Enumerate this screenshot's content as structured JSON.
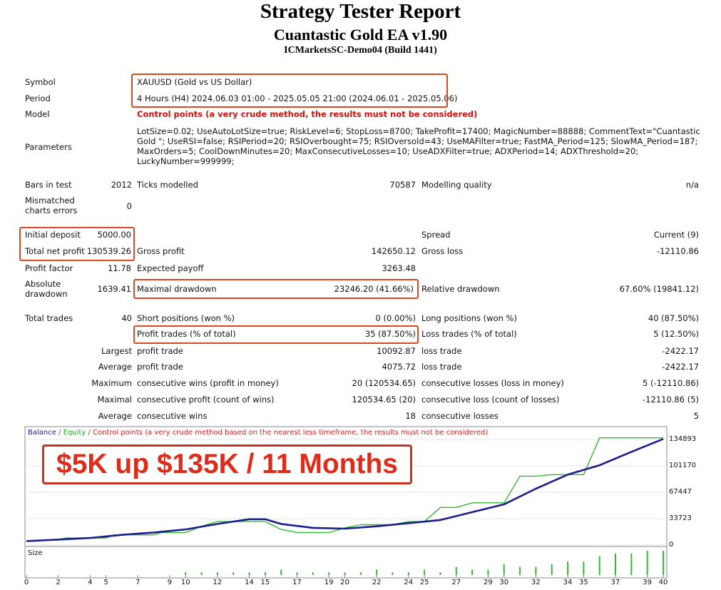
{
  "header": {
    "title": "Strategy Tester Report",
    "subtitle": "Cuantastic Gold EA v1.90",
    "server": "ICMarketsSC-Demo04 (Build 1441)"
  },
  "info": {
    "symbol_label": "Symbol",
    "symbol_value": "XAUUSD (Gold vs US Dollar)",
    "period_label": "Period",
    "period_value": "4 Hours (H4) 2024.06.03 01:00 - 2025.05.05 21:00 (2024.06.01 - 2025.05.06)",
    "model_label": "Model",
    "model_value": "Control points (a very crude method, the results must not be considered)",
    "parameters_label": "Parameters",
    "parameters_value": "LotSize=0.02; UseAutoLotSize=true; RiskLevel=6; StopLoss=8700; TakeProfit=17400; MagicNumber=88888; CommentText=\"Cuantastic Gold \"; UseRSI=false; RSIPeriod=20; RSIOverbought=75; RSIOversold=43; UseMAFilter=true; FastMA_Period=125; SlowMA_Period=187; MaxOrders=5; CoolDownMinutes=20; MaxConsecutiveLosses=10; UseADXFilter=true; ADXPeriod=14; ADXThreshold=20; LuckyNumber=999999;"
  },
  "stats": {
    "bars_label": "Bars in test",
    "bars_value": "2012",
    "ticks_label": "Ticks modelled",
    "ticks_value": "70587",
    "quality_label": "Modelling quality",
    "quality_value": "n/a",
    "mismatch_label": "Mismatched charts errors",
    "mismatch_value": "0",
    "deposit_label": "Initial deposit",
    "deposit_value": "5000.00",
    "spread_label": "Spread",
    "spread_value": "Current (9)",
    "netprofit_label": "Total net profit",
    "netprofit_value": "130539.26",
    "grossprofit_label": "Gross profit",
    "grossprofit_value": "142650.12",
    "grossloss_label": "Gross loss",
    "grossloss_value": "-12110.86",
    "pf_label": "Profit factor",
    "pf_value": "11.78",
    "payoff_label": "Expected payoff",
    "payoff_value": "3263.48",
    "absdd_label": "Absolute drawdown",
    "absdd_value": "1639.41",
    "maxdd_label": "Maximal drawdown",
    "maxdd_value": "23246.20 (41.66%)",
    "reldd_label": "Relative drawdown",
    "reldd_value": "67.60% (19841.12)",
    "trades_label": "Total trades",
    "trades_value": "40",
    "short_label": "Short positions (won %)",
    "short_value": "0 (0.00%)",
    "long_label": "Long positions (won %)",
    "long_value": "40 (87.50%)",
    "profitt_label": "Profit trades (% of total)",
    "profitt_value": "35 (87.50%)",
    "losst_label": "Loss trades (% of total)",
    "losst_value": "5 (12.50%)",
    "largest_label": "Largest",
    "largest_pt_label": "profit trade",
    "largest_pt_value": "10092.87",
    "largest_lt_label": "loss trade",
    "largest_lt_value": "-2422.17",
    "average_label": "Average",
    "average_pt_label": "profit trade",
    "average_pt_value": "4075.72",
    "average_lt_label": "loss trade",
    "average_lt_value": "-2422.17",
    "maximum_label": "Maximum",
    "max_cw_label": "consecutive wins (profit in money)",
    "max_cw_value": "20 (120534.65)",
    "max_cl_label": "consecutive losses (loss in money)",
    "max_cl_value": "5 (-12110.86)",
    "maximal_label": "Maximal",
    "mxl_cp_label": "consecutive profit (count of wins)",
    "mxl_cp_value": "120534.65 (20)",
    "mxl_cl_label": "consecutive loss (count of losses)",
    "mxl_cl_value": "-12110.86 (5)",
    "avg2_label": "Average",
    "avg_cw_label": "consecutive wins",
    "avg_cw_value": "18",
    "avg_cl_label": "consecutive losses",
    "avg_cl_value": "5"
  },
  "chart_data": {
    "type": "line",
    "legend_balance": "Balance",
    "legend_sep": " / ",
    "legend_equity": "Equity",
    "legend_control": " / Control points (a very crude method based on the nearest less timeframe, the results must not be considered)",
    "size_label": "Size",
    "promo": "$5K up $135K / 11 Months",
    "colors": {
      "balance": "#1c1c8c",
      "equity": "#33bb33",
      "control": "#cc2222",
      "size": "#33bb33"
    },
    "y_ticks": [
      "134893",
      "101170",
      "67447",
      "33723",
      "0"
    ],
    "y_tick_values": [
      134893,
      101170,
      67447,
      33723,
      0
    ],
    "ylim": [
      0,
      134893
    ],
    "x_ticks": [
      "0",
      "2",
      "4",
      "5",
      "7",
      "9",
      "10",
      "12",
      "14",
      "15",
      "17",
      "19",
      "20",
      "22",
      "24",
      "25",
      "27",
      "29",
      "30",
      "32",
      "34",
      "35",
      "37",
      "39",
      "40"
    ],
    "x_tick_values": [
      0,
      2,
      4,
      5,
      7,
      9,
      10,
      12,
      14,
      15,
      17,
      19,
      20,
      22,
      24,
      25,
      27,
      29,
      30,
      32,
      34,
      35,
      37,
      39,
      40
    ],
    "xlim": [
      0,
      40
    ],
    "series": [
      {
        "name": "Balance",
        "x": [
          0,
          2,
          4,
          6,
          8,
          10,
          12,
          14,
          15,
          16,
          18,
          20,
          22,
          24,
          26,
          28,
          30,
          32,
          34,
          36,
          38,
          40
        ],
        "values": [
          5000,
          7000,
          9000,
          13000,
          16000,
          20000,
          27000,
          33000,
          33000,
          27000,
          22000,
          21000,
          24000,
          28000,
          32000,
          42000,
          52000,
          72000,
          90000,
          102000,
          119000,
          135500
        ]
      },
      {
        "name": "Equity",
        "x": [
          0,
          0.5,
          2,
          2.5,
          5,
          5.5,
          8,
          8.5,
          10,
          11,
          12,
          14,
          15,
          16,
          17,
          19,
          20,
          21,
          23,
          24,
          25,
          26,
          27,
          28,
          30,
          31,
          32,
          33,
          35,
          36,
          37,
          38,
          40
        ],
        "values": [
          5000,
          5000,
          7000,
          9000,
          9000,
          13000,
          13000,
          16000,
          16000,
          24000,
          30000,
          30000,
          30000,
          20000,
          16000,
          16000,
          22000,
          26000,
          26000,
          30000,
          30000,
          48000,
          48000,
          54000,
          54000,
          88000,
          88000,
          90000,
          90000,
          137000,
          137000,
          137000,
          137000
        ]
      }
    ],
    "size_bars": {
      "x": [
        10,
        11,
        12,
        13,
        14,
        15,
        16,
        17,
        18,
        19,
        20,
        21,
        22,
        23,
        24,
        25,
        26,
        27,
        28,
        29,
        30,
        31,
        32,
        33,
        34,
        35,
        36,
        37,
        38,
        39,
        40
      ],
      "values": [
        1,
        1,
        1,
        1,
        1,
        1,
        2,
        1,
        1,
        1,
        1,
        1,
        2,
        1,
        1,
        2,
        1,
        3,
        2,
        2,
        4,
        3,
        3,
        4,
        5,
        5,
        7,
        8,
        8,
        9,
        9
      ]
    }
  }
}
